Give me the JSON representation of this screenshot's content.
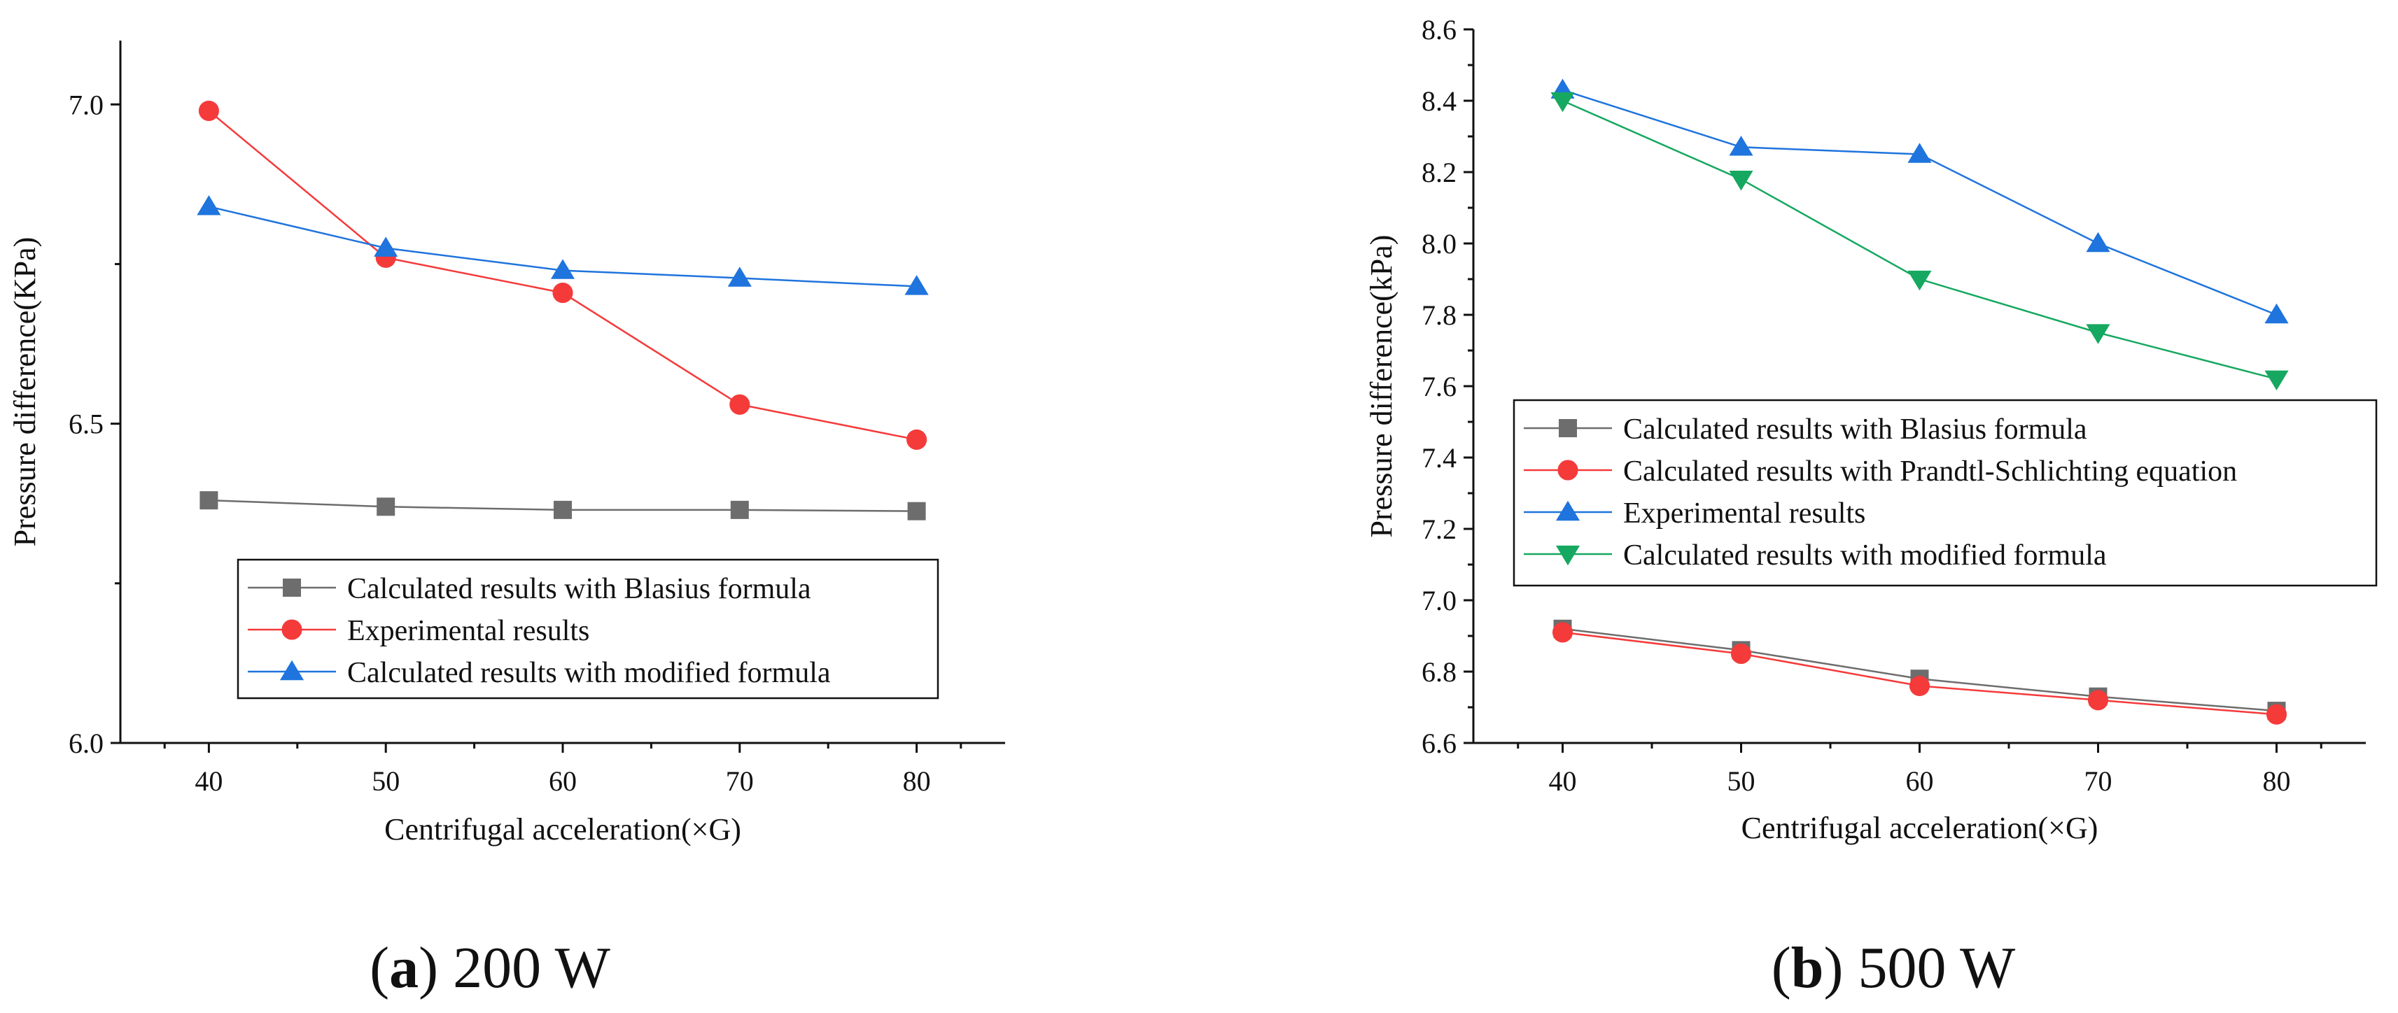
{
  "chart_data": [
    {
      "type": "line",
      "panel_letter": "a",
      "panel_label": "200 W",
      "title": "",
      "xlabel": "Centrifugal acceleration(×G)",
      "ylabel": "Pressure difference(KPa)",
      "xlim": [
        35,
        85
      ],
      "ylim": [
        6.0,
        7.1
      ],
      "x_ticks": [
        40,
        50,
        60,
        70,
        80
      ],
      "y_ticks": [
        6.0,
        6.5,
        7.0
      ],
      "y_tick_labels": [
        "6.0",
        "6.5",
        "7.0"
      ],
      "x": [
        40,
        50,
        60,
        70,
        80
      ],
      "legend_position": "lower-center",
      "series": [
        {
          "name": "Calculated results with Blasius formula",
          "values": [
            6.38,
            6.37,
            6.365,
            6.365,
            6.363
          ],
          "color": "#6d6d6d",
          "marker": "square"
        },
        {
          "name": "Experimental results",
          "values": [
            6.99,
            6.76,
            6.705,
            6.53,
            6.475
          ],
          "color": "#f53a3a",
          "marker": "circle"
        },
        {
          "name": "Calculated results with modified formula",
          "values": [
            6.84,
            6.775,
            6.74,
            6.728,
            6.715
          ],
          "color": "#1f74dd",
          "marker": "triangle-up"
        }
      ]
    },
    {
      "type": "line",
      "panel_letter": "b",
      "panel_label": "500 W",
      "title": "",
      "xlabel": "Centrifugal acceleration(×G)",
      "ylabel": "Pressure difference(kPa)",
      "xlim": [
        35,
        85
      ],
      "ylim": [
        6.6,
        8.6
      ],
      "x_ticks": [
        40,
        50,
        60,
        70,
        80
      ],
      "y_ticks": [
        6.6,
        6.8,
        7.0,
        7.2,
        7.4,
        7.6,
        7.8,
        8.0,
        8.2,
        8.4,
        8.6
      ],
      "y_tick_labels": [
        "6.6",
        "6.8",
        "7.0",
        "7.2",
        "7.4",
        "7.6",
        "7.8",
        "8.0",
        "8.2",
        "8.4",
        "8.6"
      ],
      "x": [
        40,
        50,
        60,
        70,
        80
      ],
      "legend_position": "center-right",
      "series": [
        {
          "name": "Calculated results with Blasius formula",
          "values": [
            6.92,
            6.86,
            6.78,
            6.73,
            6.69
          ],
          "color": "#6d6d6d",
          "marker": "square"
        },
        {
          "name": "Calculated results with Prandtl-Schlichting equation",
          "values": [
            6.91,
            6.85,
            6.76,
            6.72,
            6.68
          ],
          "color": "#f53a3a",
          "marker": "circle"
        },
        {
          "name": "Experimental results",
          "values": [
            8.43,
            8.27,
            8.25,
            8.0,
            7.8
          ],
          "color": "#1f74dd",
          "marker": "triangle-up"
        },
        {
          "name": "Calculated results with modified formula",
          "values": [
            8.4,
            8.18,
            7.9,
            7.75,
            7.62
          ],
          "color": "#16a860",
          "marker": "triangle-down"
        }
      ]
    }
  ]
}
